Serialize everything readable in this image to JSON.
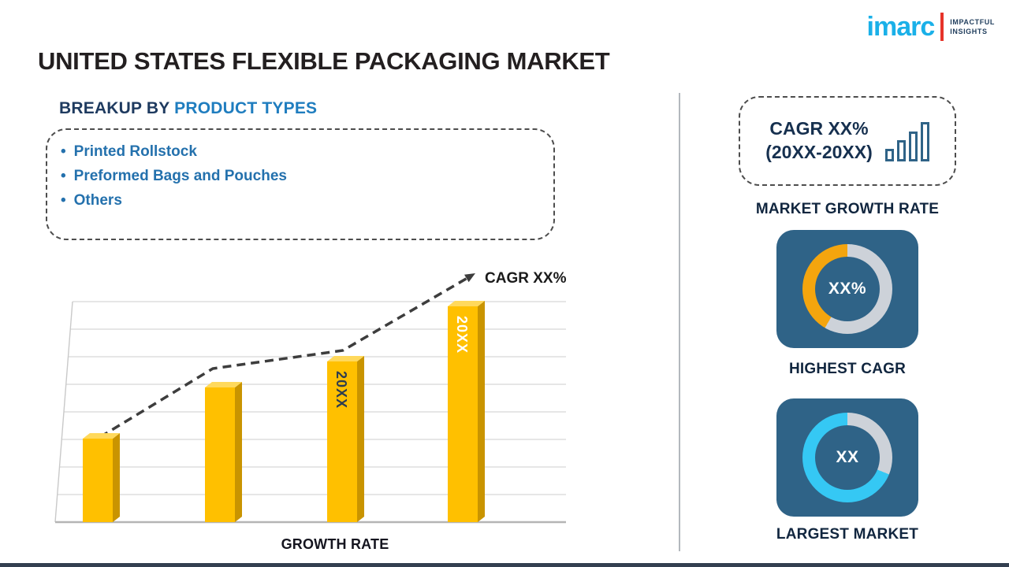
{
  "logo": {
    "brand": "imarc",
    "tagline_line1": "IMPACTFUL",
    "tagline_line2": "INSIGHTS"
  },
  "title": "UNITED STATES FLEXIBLE PACKAGING MARKET",
  "breakup": {
    "heading_prefix": "BREAKUP BY",
    "heading_highlight": "PRODUCT TYPES",
    "items": [
      "Printed Rollstock",
      "Preformed Bags and Pouches",
      "Others"
    ]
  },
  "chart_data": {
    "type": "bar",
    "values": [
      38,
      61,
      73,
      98
    ],
    "ylim": [
      0,
      100
    ],
    "bar_labels": [
      "",
      "",
      "20XX",
      "20XX"
    ],
    "bar_label_colors": [
      "",
      "",
      "#2e3d4f",
      "#ffffff"
    ],
    "annotation": "CAGR XX%",
    "xlabel": "GROWTH RATE",
    "grid": true,
    "legend": false,
    "trend_line": "dashed-arrow-ascending",
    "bar_color": "#ffc000",
    "bar_side_color": "#c99400",
    "bar_top_color": "#ffd95c"
  },
  "sidebar": {
    "cagr_box": {
      "line1": "CAGR XX%",
      "line2": "(20XX-20XX)"
    },
    "market_growth_rate_label": "MARKET GROWTH RATE",
    "highest_cagr": {
      "value": "XX%",
      "label": "HIGHEST CAGR",
      "ring_rest": "#cdd2d9",
      "ring_accent": "#f4a50e",
      "accent_start": 210,
      "accent_end": 360
    },
    "largest_market": {
      "value": "XX",
      "label": "LARGEST MARKET",
      "ring_rest": "#35c8f4",
      "ring_accent": "#cdd2d9",
      "accent_start": 0,
      "accent_end": 112
    }
  },
  "colors": {
    "accent_navy": "#16304f",
    "accent_blue": "#2471ad",
    "tile_blue": "#2f6387",
    "bottom_bar": "#333f50",
    "logo_cyan": "#1ab0e8",
    "logo_red": "#e63329"
  }
}
